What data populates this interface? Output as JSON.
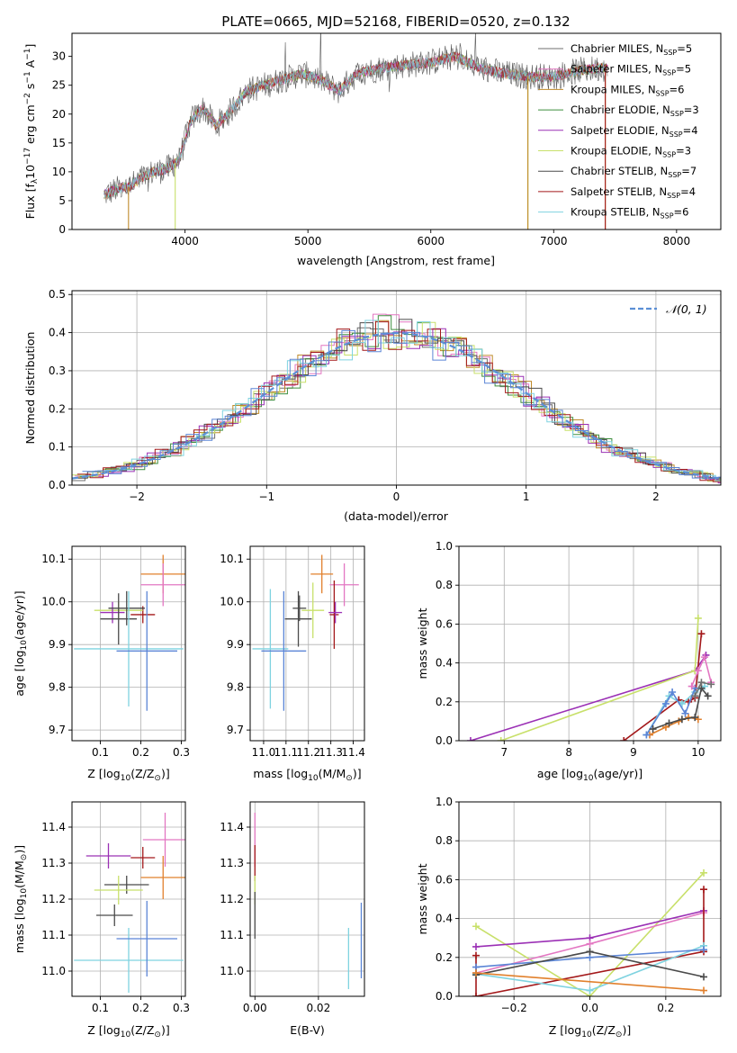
{
  "figure_title": "PLATE=0665, MJD=52168, FIBERID=0520, z=0.132",
  "colors": {
    "Chabrier MILES": "#6f6f6f",
    "Salpeter MILES": "#e377c2",
    "Kroupa MILES": "#bf8a2a",
    "Chabrier ELODIE": "#3e8e3e",
    "Salpeter ELODIE": "#9b30b5",
    "Kroupa ELODIE": "#c8e06a",
    "Chabrier STELIB": "#4a4a4a",
    "Salpeter STELIB": "#a3181a",
    "Kroupa STELIB": "#7fd3e0",
    "orange": "#e1802c",
    "blue": "#5b85d6",
    "gaussian": "#5b8fd6",
    "grid": "#b0b0b0"
  },
  "chart_data": [
    {
      "id": "spectrum",
      "type": "line",
      "title": "PLATE=0665, MJD=52168, FIBERID=0520, z=0.132",
      "xlabel": "wavelength [Angstrom, rest frame]",
      "ylabel_parts": [
        "Flux [f",
        "λ",
        "10",
        "−17",
        " erg cm",
        "−2",
        " s",
        "−1",
        " A",
        "−1",
        "]"
      ],
      "xlim": [
        3080,
        8360
      ],
      "ylim": [
        0,
        34
      ],
      "xticks": [
        4000,
        5000,
        6000,
        7000,
        8000
      ],
      "yticks": [
        0,
        5,
        10,
        15,
        20,
        25,
        30
      ],
      "grid": false,
      "legend_position": "top-right",
      "continuum": {
        "x": [
          3340,
          3450,
          3550,
          3650,
          3750,
          3850,
          3950,
          4050,
          4150,
          4250,
          4350,
          4500,
          4650,
          4800,
          4950,
          5100,
          5250,
          5400,
          5600,
          5800,
          6000,
          6200,
          6400,
          6600,
          6800,
          7000,
          7200,
          7400
        ],
        "y": [
          6,
          7,
          7.5,
          9,
          10,
          10.5,
          12,
          19,
          21,
          18,
          20,
          24,
          25,
          26,
          27,
          26,
          24,
          27,
          28,
          28.5,
          29,
          30,
          28,
          27,
          26.5,
          26.5,
          27.5,
          28
        ]
      },
      "drop_lines": [
        {
          "series": "Kroupa MILES",
          "x": 3540
        },
        {
          "series": "Kroupa ELODIE",
          "x": 3920
        },
        {
          "series": "Kroupa ELODIE",
          "x": 6790
        },
        {
          "series": "Kroupa MILES",
          "x": 6790
        },
        {
          "series": "Kroupa MILES",
          "x": 7420
        },
        {
          "series": "Salpeter STELIB",
          "x": 7420
        }
      ],
      "legend": [
        {
          "name": "Chabrier MILES",
          "pre": "Chabrier MILES, N",
          "sub": "SSP",
          "post": "=5"
        },
        {
          "name": "Salpeter MILES",
          "pre": "Salpeter MILES, N",
          "sub": "SSP",
          "post": "=5"
        },
        {
          "name": "Kroupa MILES",
          "pre": "Kroupa MILES, N",
          "sub": "SSP",
          "post": "=6"
        },
        {
          "name": "Chabrier ELODIE",
          "pre": "Chabrier ELODIE, N",
          "sub": "SSP",
          "post": "=3"
        },
        {
          "name": "Salpeter ELODIE",
          "pre": "Salpeter ELODIE, N",
          "sub": "SSP",
          "post": "=4"
        },
        {
          "name": "Kroupa ELODIE",
          "pre": "Kroupa ELODIE, N",
          "sub": "SSP",
          "post": "=3"
        },
        {
          "name": "Chabrier STELIB",
          "pre": "Chabrier STELIB, N",
          "sub": "SSP",
          "post": "=7"
        },
        {
          "name": "Salpeter STELIB",
          "pre": "Salpeter STELIB, N",
          "sub": "SSP",
          "post": "=4"
        },
        {
          "name": "Kroupa STELIB",
          "pre": "Kroupa STELIB, N",
          "sub": "SSP",
          "post": "=6"
        }
      ]
    },
    {
      "id": "residuals",
      "type": "histogram",
      "xlabel": "(data-model)/error",
      "ylabel": "Normed distribution",
      "xlim": [
        -2.5,
        2.5
      ],
      "ylim": [
        0,
        0.51
      ],
      "xticks": [
        -2,
        -1,
        0,
        1,
        2
      ],
      "yticks": [
        0.0,
        0.1,
        0.2,
        0.3,
        0.4,
        0.5
      ],
      "grid": true,
      "legend_position": "top-right",
      "legend_label": "𝒩(0, 1)",
      "bin_width": 0.1,
      "series": [
        "Chabrier MILES",
        "Salpeter MILES",
        "Kroupa MILES",
        "Chabrier ELODIE",
        "Salpeter ELODIE",
        "Kroupa ELODIE",
        "Chabrier STELIB",
        "Salpeter STELIB",
        "Kroupa STELIB",
        "blue"
      ]
    },
    {
      "id": "age_vs_Z",
      "type": "errorbar",
      "xlabel_parts": [
        "Z [log",
        "10",
        "(Z/Z",
        "⊙",
        ")]"
      ],
      "ylabel_parts": [
        "age  [log",
        "10",
        "(age/yr)]"
      ],
      "xlim": [
        0.03,
        0.31
      ],
      "ylim": [
        9.675,
        10.13
      ],
      "xticks": [
        0.1,
        0.2,
        0.3
      ],
      "yticks": [
        9.7,
        9.8,
        9.9,
        10.0,
        10.1
      ],
      "grid": true,
      "points": [
        {
          "c": "orange",
          "x": 0.255,
          "y": 10.065,
          "ex": 0.055,
          "ey": 0.045
        },
        {
          "c": "Salpeter MILES",
          "x": 0.255,
          "y": 10.04,
          "ex": 0.055,
          "ey": 0.05
        },
        {
          "c": "Salpeter STELIB",
          "x": 0.205,
          "y": 9.97,
          "ex": 0.03,
          "ey": 0.02
        },
        {
          "c": "Kroupa ELODIE",
          "x": 0.145,
          "y": 9.98,
          "ex": 0.06,
          "ey": 0.02
        },
        {
          "c": "Salpeter ELODIE",
          "x": 0.13,
          "y": 9.975,
          "ex": 0.03,
          "ey": 0.025
        },
        {
          "c": "Chabrier STELIB",
          "x": 0.165,
          "y": 9.985,
          "ex": 0.045,
          "ey": 0.04
        },
        {
          "c": "Chabrier STELIB",
          "x": 0.145,
          "y": 9.96,
          "ex": 0.045,
          "ey": 0.06
        },
        {
          "c": "Kroupa STELIB",
          "x": 0.17,
          "y": 9.89,
          "ex": 0.135,
          "ey": 0.135
        },
        {
          "c": "blue",
          "x": 0.215,
          "y": 9.885,
          "ex": 0.075,
          "ey": 0.14
        }
      ]
    },
    {
      "id": "age_vs_mass",
      "type": "errorbar",
      "xlabel_parts": [
        "mass [log",
        "10",
        "(M/M",
        "⊙",
        ")]"
      ],
      "ylabel_parts": [],
      "xlim": [
        10.94,
        11.45
      ],
      "ylim": [
        9.675,
        10.13
      ],
      "xticks": [
        11.0,
        11.1,
        11.2,
        11.3,
        11.4
      ],
      "yticks": [
        9.7,
        9.8,
        9.9,
        10.0,
        10.1
      ],
      "grid": true,
      "points": [
        {
          "c": "orange",
          "x": 11.26,
          "y": 10.065,
          "ex": 0.05,
          "ey": 0.045
        },
        {
          "c": "Salpeter MILES",
          "x": 11.36,
          "y": 10.04,
          "ex": 0.065,
          "ey": 0.05
        },
        {
          "c": "Salpeter STELIB",
          "x": 11.315,
          "y": 9.97,
          "ex": 0.02,
          "ey": 0.08
        },
        {
          "c": "Kroupa ELODIE",
          "x": 11.22,
          "y": 9.98,
          "ex": 0.05,
          "ey": 0.065
        },
        {
          "c": "Salpeter ELODIE",
          "x": 11.32,
          "y": 9.975,
          "ex": 0.03,
          "ey": 0.025
        },
        {
          "c": "Chabrier STELIB",
          "x": 11.155,
          "y": 9.96,
          "ex": 0.06,
          "ey": 0.065
        },
        {
          "c": "Chabrier STELIB",
          "x": 11.16,
          "y": 9.985,
          "ex": 0.03,
          "ey": 0.03
        },
        {
          "c": "Kroupa STELIB",
          "x": 11.03,
          "y": 9.89,
          "ex": 0.08,
          "ey": 0.14
        },
        {
          "c": "blue",
          "x": 11.09,
          "y": 9.885,
          "ex": 0.1,
          "ey": 0.14
        }
      ]
    },
    {
      "id": "mass_weight_vs_age",
      "type": "line",
      "xlabel_parts": [
        "age  [log",
        "10",
        "(age/yr)]"
      ],
      "ylabel": "mass weight",
      "xlim": [
        6.3,
        10.35
      ],
      "ylim": [
        0,
        1.0
      ],
      "xticks": [
        7,
        8,
        9,
        10
      ],
      "yticks": [
        0.0,
        0.2,
        0.4,
        0.6,
        0.8,
        1.0
      ],
      "grid": true,
      "series": [
        {
          "c": "Salpeter ELODIE",
          "x": [
            6.48,
            9.95,
            10.12
          ],
          "y": [
            0.0,
            0.36,
            0.44
          ]
        },
        {
          "c": "Kroupa ELODIE",
          "x": [
            6.95,
            9.95,
            10.0
          ],
          "y": [
            0.0,
            0.36,
            0.63
          ]
        },
        {
          "c": "Salpeter STELIB",
          "x": [
            8.85,
            9.7,
            9.85,
            9.95,
            10.05
          ],
          "y": [
            0.0,
            0.21,
            0.2,
            0.22,
            0.55
          ]
        },
        {
          "c": "Kroupa STELIB",
          "x": [
            9.2,
            9.55,
            9.75,
            9.95,
            10.1
          ],
          "y": [
            0.03,
            0.23,
            0.19,
            0.25,
            0.28
          ]
        },
        {
          "c": "orange",
          "x": [
            9.25,
            9.5,
            9.7,
            9.85,
            10.0
          ],
          "y": [
            0.03,
            0.07,
            0.1,
            0.12,
            0.11
          ]
        },
        {
          "c": "blue",
          "x": [
            9.2,
            9.5,
            9.6,
            9.8,
            9.95
          ],
          "y": [
            0.03,
            0.19,
            0.25,
            0.14,
            0.27
          ]
        },
        {
          "c": "Chabrier STELIB",
          "x": [
            9.3,
            9.55,
            9.75,
            9.95,
            10.05,
            10.15
          ],
          "y": [
            0.06,
            0.09,
            0.11,
            0.12,
            0.27,
            0.23
          ]
        },
        {
          "c": "Salpeter MILES",
          "x": [
            9.9,
            10.0,
            10.1,
            10.2
          ],
          "y": [
            0.28,
            0.36,
            0.43,
            0.3
          ]
        },
        {
          "c": "Chabrier MILES",
          "x": [
            9.95,
            10.05,
            10.2
          ],
          "y": [
            0.23,
            0.3,
            0.29
          ]
        }
      ]
    },
    {
      "id": "mass_vs_Z",
      "type": "errorbar",
      "xlabel_parts": [
        "Z [log",
        "10",
        "(Z/Z",
        "⊙",
        ")]"
      ],
      "ylabel_parts": [
        "mass [log",
        "10",
        "(M/M",
        "⊙",
        ")]"
      ],
      "xlim": [
        0.03,
        0.31
      ],
      "ylim": [
        10.93,
        11.47
      ],
      "xticks": [
        0.1,
        0.2,
        0.3
      ],
      "yticks": [
        11.0,
        11.1,
        11.2,
        11.3,
        11.4
      ],
      "grid": true,
      "points": [
        {
          "c": "Salpeter MILES",
          "x": 0.26,
          "y": 11.365,
          "ex": 0.055,
          "ey": 0.075
        },
        {
          "c": "Salpeter ELODIE",
          "x": 0.12,
          "y": 11.32,
          "ex": 0.055,
          "ey": 0.035
        },
        {
          "c": "Salpeter STELIB",
          "x": 0.205,
          "y": 11.315,
          "ex": 0.03,
          "ey": 0.03
        },
        {
          "c": "orange",
          "x": 0.255,
          "y": 11.26,
          "ex": 0.055,
          "ey": 0.06
        },
        {
          "c": "Chabrier STELIB",
          "x": 0.165,
          "y": 11.24,
          "ex": 0.055,
          "ey": 0.025
        },
        {
          "c": "Kroupa ELODIE",
          "x": 0.145,
          "y": 11.225,
          "ex": 0.06,
          "ey": 0.04
        },
        {
          "c": "Chabrier STELIB",
          "x": 0.135,
          "y": 11.155,
          "ex": 0.045,
          "ey": 0.03
        },
        {
          "c": "Kroupa STELIB",
          "x": 0.17,
          "y": 11.03,
          "ex": 0.135,
          "ey": 0.09
        },
        {
          "c": "blue",
          "x": 0.215,
          "y": 11.09,
          "ex": 0.075,
          "ey": 0.105
        }
      ]
    },
    {
      "id": "mass_vs_ebv",
      "type": "errorbar",
      "xlabel": "E(B-V)",
      "xlim": [
        -0.0015,
        0.0345
      ],
      "ylim": [
        10.93,
        11.47
      ],
      "xticks": [
        0.0,
        0.02
      ],
      "yticks": [
        11.0,
        11.1,
        11.2,
        11.3,
        11.4
      ],
      "grid": true,
      "points": [
        {
          "c": "Salpeter MILES",
          "x": 0.0,
          "y": 11.365,
          "ex": 0.0,
          "ey": 0.075
        },
        {
          "c": "Salpeter STELIB",
          "x": 0.0,
          "y": 11.3,
          "ex": 0.0,
          "ey": 0.05
        },
        {
          "c": "Kroupa ELODIE",
          "x": 0.0,
          "y": 11.225,
          "ex": 0.0,
          "ey": 0.04
        },
        {
          "c": "Chabrier STELIB",
          "x": 0.0,
          "y": 11.155,
          "ex": 0.0,
          "ey": 0.065
        },
        {
          "c": "Kroupa STELIB",
          "x": 0.0295,
          "y": 11.035,
          "ex": 0.0,
          "ey": 0.085
        },
        {
          "c": "blue",
          "x": 0.0335,
          "y": 11.085,
          "ex": 0.0,
          "ey": 0.105
        }
      ]
    },
    {
      "id": "mass_weight_vs_Z",
      "type": "line",
      "xlabel_parts": [
        "Z [log",
        "10",
        "(Z/Z",
        "⊙",
        ")]"
      ],
      "ylabel": "mass weight",
      "xlim": [
        -0.345,
        0.345
      ],
      "ylim": [
        0,
        1.0
      ],
      "xticks": [
        -0.2,
        0.0,
        0.2
      ],
      "yticks": [
        0.0,
        0.2,
        0.4,
        0.6,
        0.8,
        1.0
      ],
      "grid": true,
      "series": [
        {
          "c": "Kroupa ELODIE",
          "x": [
            -0.3,
            0.0,
            0.3
          ],
          "y": [
            0.36,
            0.0,
            0.635
          ]
        },
        {
          "c": "Salpeter ELODIE",
          "x": [
            -0.3,
            0.0,
            0.3
          ],
          "y": [
            0.255,
            0.3,
            0.44
          ]
        },
        {
          "c": "Salpeter MILES",
          "x": [
            -0.3,
            0.0,
            0.3
          ],
          "y": [
            0.12,
            0.27,
            0.43
          ]
        },
        {
          "c": "Salpeter STELIB",
          "x": [
            -0.3,
            -0.3,
            0.3,
            0.3
          ],
          "y": [
            0.21,
            0.0,
            0.23,
            0.55
          ]
        },
        {
          "c": "Kroupa STELIB",
          "x": [
            -0.3,
            0.0,
            0.3
          ],
          "y": [
            0.115,
            0.03,
            0.26
          ]
        },
        {
          "c": "blue",
          "x": [
            -0.3,
            0.0,
            0.3
          ],
          "y": [
            0.15,
            0.2,
            0.24
          ]
        },
        {
          "c": "Chabrier STELIB",
          "x": [
            -0.3,
            0.0,
            0.3
          ],
          "y": [
            0.11,
            0.23,
            0.1
          ]
        },
        {
          "c": "orange",
          "x": [
            -0.3,
            0.3
          ],
          "y": [
            0.12,
            0.03
          ]
        }
      ]
    }
  ]
}
